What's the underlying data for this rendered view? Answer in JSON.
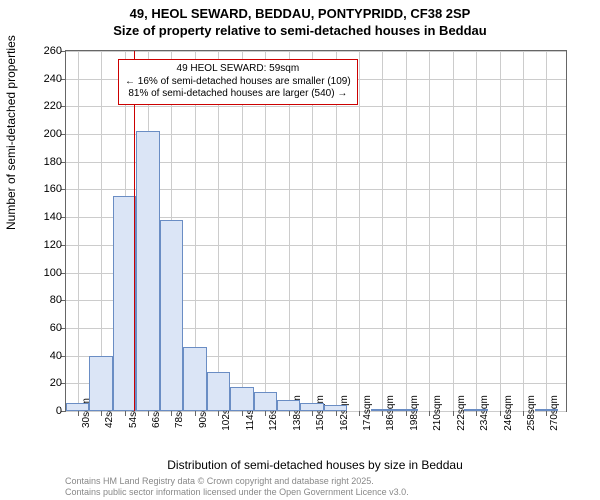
{
  "title_line1": "49, HEOL SEWARD, BEDDAU, PONTYPRIDD, CF38 2SP",
  "title_line2": "Size of property relative to semi-detached houses in Beddau",
  "ylabel": "Number of semi-detached properties",
  "xlabel": "Distribution of semi-detached houses by size in Beddau",
  "footer_line1": "Contains HM Land Registry data © Crown copyright and database right 2025.",
  "footer_line2": "Contains public sector information licensed under the Open Government Licence v3.0.",
  "chart": {
    "type": "histogram",
    "ylim": [
      0,
      260
    ],
    "ytick_step": 20,
    "xlim": [
      24,
      280
    ],
    "xtick_start": 30,
    "xtick_step": 12,
    "xtick_count": 21,
    "xtick_suffix": "sqm",
    "bar_fill": "#dbe5f6",
    "bar_stroke": "#6a8dc4",
    "grid_color": "#cccccc",
    "background_color": "#ffffff",
    "refline_x": 59,
    "refline_color": "#cc0000",
    "bars": [
      {
        "x0": 24,
        "x1": 36,
        "y": 6
      },
      {
        "x0": 36,
        "x1": 48,
        "y": 40
      },
      {
        "x0": 48,
        "x1": 60,
        "y": 155
      },
      {
        "x0": 60,
        "x1": 72,
        "y": 202
      },
      {
        "x0": 72,
        "x1": 84,
        "y": 138
      },
      {
        "x0": 84,
        "x1": 96,
        "y": 46
      },
      {
        "x0": 96,
        "x1": 108,
        "y": 28
      },
      {
        "x0": 108,
        "x1": 120,
        "y": 17
      },
      {
        "x0": 120,
        "x1": 132,
        "y": 14
      },
      {
        "x0": 132,
        "x1": 144,
        "y": 8
      },
      {
        "x0": 144,
        "x1": 156,
        "y": 6
      },
      {
        "x0": 156,
        "x1": 168,
        "y": 4
      },
      {
        "x0": 168,
        "x1": 180,
        "y": 0
      },
      {
        "x0": 180,
        "x1": 192,
        "y": 1
      },
      {
        "x0": 192,
        "x1": 204,
        "y": 1
      },
      {
        "x0": 204,
        "x1": 216,
        "y": 0
      },
      {
        "x0": 216,
        "x1": 228,
        "y": 0
      },
      {
        "x0": 228,
        "x1": 240,
        "y": 1
      },
      {
        "x0": 240,
        "x1": 252,
        "y": 0
      },
      {
        "x0": 252,
        "x1": 264,
        "y": 0
      },
      {
        "x0": 264,
        "x1": 276,
        "y": 1
      }
    ],
    "annotation": {
      "line1": "49 HEOL SEWARD: 59sqm",
      "line2": "← 16% of semi-detached houses are smaller (109)",
      "line3": "81% of semi-detached houses are larger (540) →",
      "border_color": "#cc0000"
    }
  }
}
